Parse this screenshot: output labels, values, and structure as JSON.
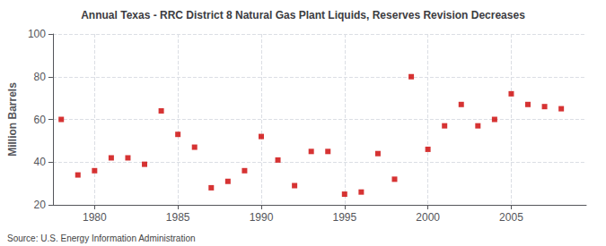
{
  "chart_data": {
    "type": "scatter",
    "title": "Annual Texas - RRC District 8 Natural Gas Plant Liquids, Reserves Revision Decreases",
    "ylabel": "Million Barrels",
    "source": "Source: U.S. Energy Information Administration",
    "x": [
      1978,
      1979,
      1980,
      1981,
      1982,
      1983,
      1984,
      1985,
      1986,
      1987,
      1988,
      1989,
      1990,
      1991,
      1992,
      1993,
      1994,
      1995,
      1996,
      1997,
      1998,
      1999,
      2000,
      2001,
      2002,
      2003,
      2004,
      2005,
      2006,
      2007,
      2008
    ],
    "values": [
      60,
      34,
      36,
      42,
      42,
      39,
      64,
      53,
      47,
      28,
      31,
      36,
      52,
      41,
      29,
      45,
      45,
      25,
      26,
      44,
      32,
      80,
      46,
      57,
      67,
      57,
      60,
      72,
      67,
      66,
      65
    ],
    "color": "#cc0000",
    "marker": "square",
    "xlim": [
      1977.5,
      2009.5
    ],
    "ylim": [
      20,
      100
    ],
    "xticks": [
      1980,
      1985,
      1990,
      1995,
      2000,
      2005
    ],
    "yticks": [
      20,
      40,
      60,
      80,
      100
    ],
    "grid": true
  }
}
